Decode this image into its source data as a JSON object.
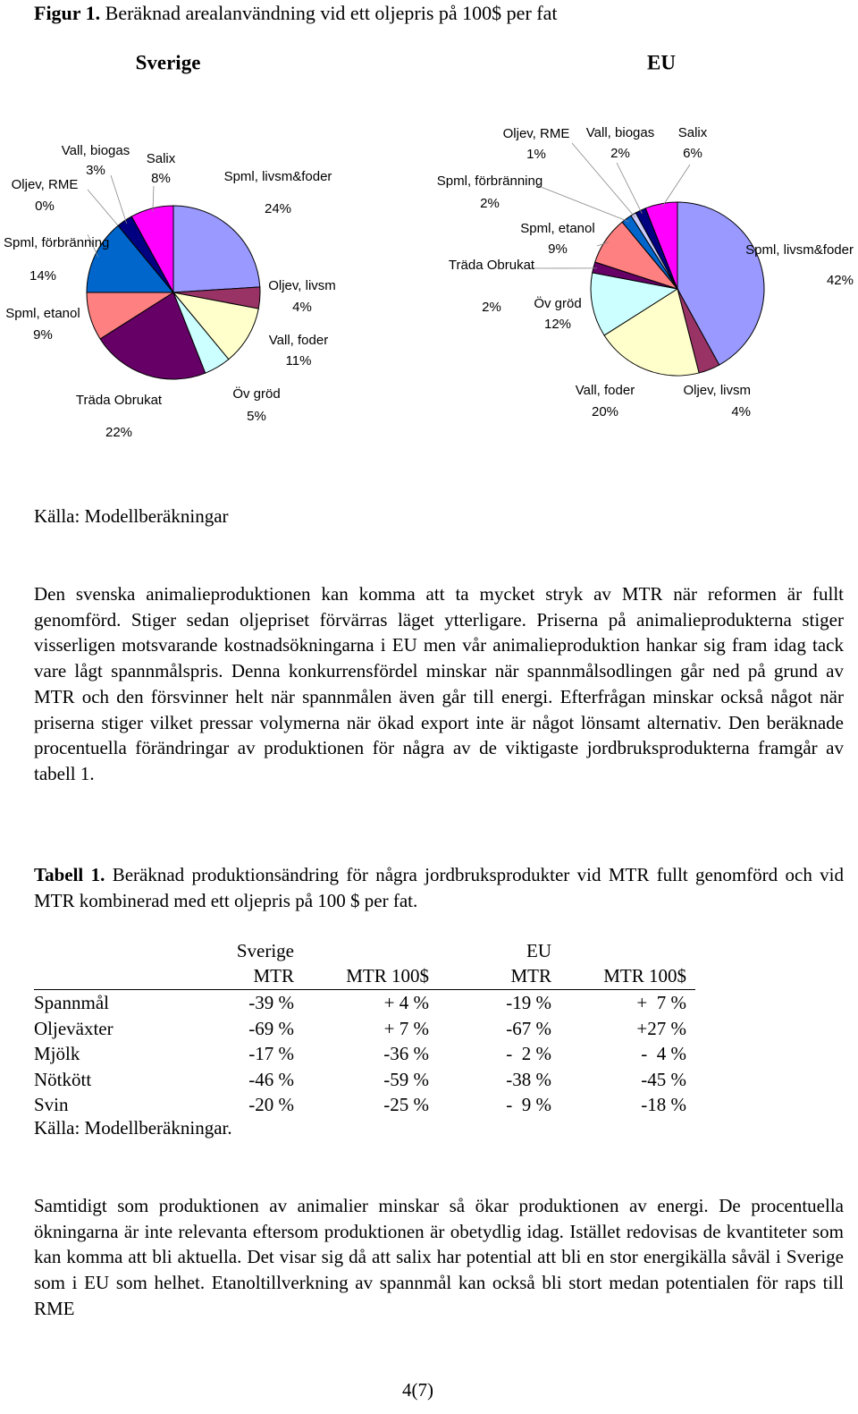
{
  "figure": {
    "label": "Figur 1.",
    "title": "Beräknad arealanvändning vid ett oljepris på 100$ per fat"
  },
  "chart_data": [
    {
      "type": "pie",
      "title": "Sverige",
      "categories": [
        "Spml, livsm&foder",
        "Oljev, livsm",
        "Vall, foder",
        "Öv gröd",
        "Träda Obrukat",
        "Spml, etanol",
        "Spml, förbränning",
        "Oljev, RME",
        "Vall, biogas",
        "Salix"
      ],
      "values": [
        24,
        4,
        11,
        5,
        22,
        9,
        14,
        0,
        3,
        8
      ],
      "value_labels": [
        "24%",
        "4%",
        "11%",
        "5%",
        "22%",
        "9%",
        "14%",
        "0%",
        "3%",
        "8%"
      ],
      "colors": [
        "#9999ff",
        "#993366",
        "#ffffcc",
        "#ccffff",
        "#660066",
        "#ff8080",
        "#0066cc",
        "#ccccff",
        "#000080",
        "#ff00ff"
      ]
    },
    {
      "type": "pie",
      "title": "EU",
      "categories": [
        "Spml, livsm&foder",
        "Oljev, livsm",
        "Vall, foder",
        "Öv gröd",
        "Träda Obrukat",
        "Spml, etanol",
        "Spml, förbränning",
        "Oljev, RME",
        "Vall, biogas",
        "Salix"
      ],
      "values": [
        42,
        4,
        20,
        12,
        2,
        9,
        2,
        1,
        2,
        6
      ],
      "value_labels": [
        "42%",
        "4%",
        "20%",
        "12%",
        "2%",
        "9%",
        "2%",
        "1%",
        "2%",
        "6%"
      ],
      "colors": [
        "#9999ff",
        "#993366",
        "#ffffcc",
        "#ccffff",
        "#660066",
        "#ff8080",
        "#0066cc",
        "#ccccff",
        "#000080",
        "#ff00ff"
      ]
    }
  ],
  "figure_source": "Källa: Modellberäkningar",
  "paragraphs": [
    "Den svenska animalieproduktionen kan komma att ta mycket stryk av MTR när reformen är fullt genomförd. Stiger sedan oljepriset förvärras läget ytterligare. Priserna på animalieprodukterna stiger visserligen motsvarande kostnadsökningarna i EU men vår animalieproduktion hankar sig fram idag tack vare lågt spannmålspris. Denna konkurrensfördel minskar när spannmålsodlingen går ned på grund av MTR och den försvinner helt när spannmålen även går till energi. Efterfrågan minskar också något när priserna stiger vilket pressar volymerna när ökad export inte är något lönsamt alternativ. Den beräknade procentuella förändringar av produktionen för några av de viktigaste jordbruksprodukterna framgår av tabell 1.",
    "Samtidigt som produktionen av animalier minskar så ökar produktionen av energi. De procentuella ökningarna är inte relevanta eftersom produktionen är obetydlig idag. Istället redovisas de kvantiteter som kan komma att bli aktuella. Det visar sig då att salix har potential att bli en stor energikälla såväl i Sverige som i EU som helhet. Etanoltillverkning av spannmål kan också bli stort medan potentialen för raps till RME"
  ],
  "table": {
    "label": "Tabell 1.",
    "caption": "Beräknad produktionsändring för några jordbruksprodukter vid MTR fullt genomförd och vid MTR kombinerad med ett oljepris på 100 $ per fat.",
    "groups": [
      "Sverige",
      "EU"
    ],
    "columns": [
      "MTR",
      "MTR 100$",
      "MTR",
      "MTR 100$"
    ],
    "rows": [
      [
        "Spannmål",
        "-39 %",
        "+ 4 %",
        "-19 %",
        "+  7 %"
      ],
      [
        "Oljeväxter",
        "-69 %",
        "+ 7 %",
        "-67 %",
        "+27 %"
      ],
      [
        "Mjölk",
        "-17 %",
        "-36 %",
        "-  2 %",
        "-  4 %"
      ],
      [
        "Nötkött",
        "-46 %",
        "-59 %",
        "-38 %",
        "-45 %"
      ],
      [
        "Svin",
        "-20 %",
        "-25 %",
        "-  9 %",
        "-18 %"
      ]
    ],
    "source": "Källa: Modellberäkningar."
  },
  "page_number": "4(7)"
}
